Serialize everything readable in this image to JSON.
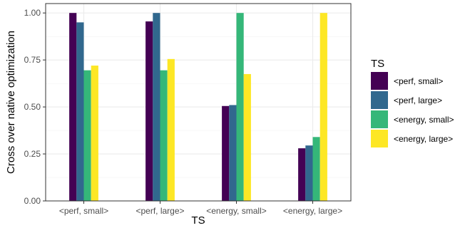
{
  "chart_data": {
    "type": "bar",
    "xlabel": "TS",
    "ylabel": "Cross over native optimization",
    "ylim": [
      0,
      1.05
    ],
    "yticks": [
      "0.00",
      "0.25",
      "0.50",
      "0.75",
      "1.00"
    ],
    "categories": [
      "<perf, small>",
      "<perf, large>",
      "<energy, small>",
      "<energy, large>"
    ],
    "series": [
      {
        "name": "<perf, small>",
        "color": "#440154",
        "values": [
          1.0,
          0.955,
          0.505,
          0.28
        ]
      },
      {
        "name": "<perf, large>",
        "color": "#31688e",
        "values": [
          0.95,
          1.0,
          0.51,
          0.295
        ]
      },
      {
        "name": "<energy, small>",
        "color": "#35b779",
        "values": [
          0.695,
          0.695,
          1.0,
          0.34
        ]
      },
      {
        "name": "<energy, large>",
        "color": "#fde725",
        "values": [
          0.72,
          0.755,
          0.675,
          1.0
        ]
      }
    ],
    "legend": {
      "title": "TS",
      "position": "right"
    },
    "grid": true
  }
}
